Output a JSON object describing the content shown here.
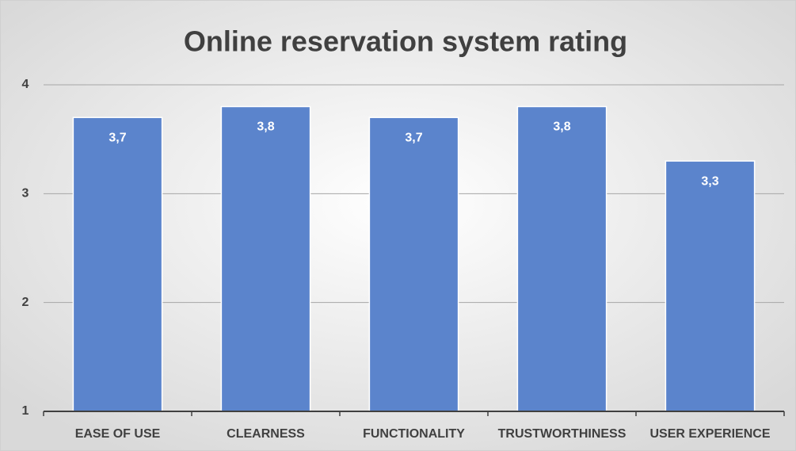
{
  "chart_data": {
    "type": "bar",
    "title": "Online reservation system rating",
    "categories": [
      "EASE OF USE",
      "CLEARNESS",
      "FUNCTIONALITY",
      "TRUSTWORTHINESS",
      "USER EXPERIENCE"
    ],
    "values": [
      3.7,
      3.8,
      3.7,
      3.8,
      3.3
    ],
    "value_labels": [
      "3,7",
      "3,8",
      "3,7",
      "3,8",
      "3,3"
    ],
    "color": "#5b84cc",
    "ylim": [
      1,
      4
    ],
    "yticks": [
      1,
      2,
      3,
      4
    ],
    "grid": true
  }
}
